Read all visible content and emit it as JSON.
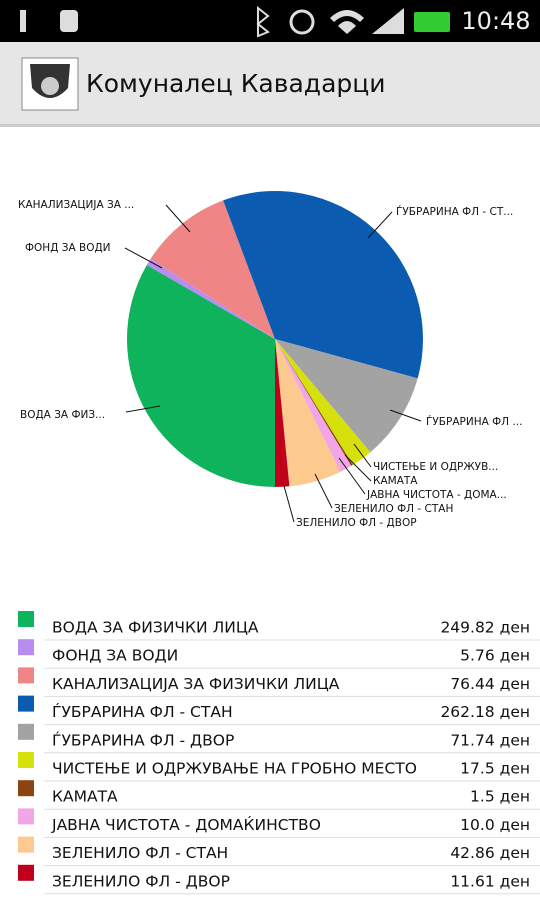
{
  "status_bar": {
    "time": "10:48"
  },
  "app_bar": {
    "title": "Комуналец Кавадарци"
  },
  "chart_data": {
    "type": "pie",
    "categories": [
      "ВОДА  ЗА ФИЗИЧКИ ЛИЦА",
      "ФОНД ЗА ВОДИ",
      "КАНАЛИЗАЦИЈА ЗА ФИЗИЧКИ ЛИЦА",
      "ЃУБРАРИНА ФЛ - СТАН",
      "ЃУБРАРИНА ФЛ - ДВОР",
      "ЧИСТЕЊЕ И ОДРЖУВАЊЕ НА ГРОБНО МЕСТО",
      "КАМАТА",
      "ЈАВНА ЧИСТОТА - ДОМАЌИНСТВО",
      "ЗЕЛЕНИЛО ФЛ - СТАН",
      "ЗЕЛЕНИЛО ФЛ - ДВОР"
    ],
    "slice_labels": [
      "ВОДА  ЗА ФИЗ...",
      "ФОНД ЗА ВОДИ",
      "КАНАЛИЗАЦИЈА ЗА ...",
      "ЃУБРАРИНА ФЛ - СТ...",
      "ЃУБРАРИНА ФЛ ...",
      "ЧИСТЕЊЕ И ОДРЖУВ...",
      "КАМАТА",
      "ЈАВНА ЧИСТОТА - ДОМА...",
      "ЗЕЛЕНИЛО ФЛ - СТАН",
      "ЗЕЛЕНИЛО ФЛ - ДВОР"
    ],
    "values": [
      249.82,
      5.76,
      76.44,
      262.18,
      71.74,
      17.5,
      1.5,
      10.0,
      42.86,
      11.61
    ],
    "value_labels": [
      "249.82 ден",
      "5.76 ден",
      "76.44 ден",
      "262.18 ден",
      "71.74 ден",
      "17.5 ден",
      "1.5 ден",
      "10.0 ден",
      "42.86 ден",
      "11.61 ден"
    ],
    "colors": [
      "#0fb35c",
      "#b98cf0",
      "#f08585",
      "#0b5cb0",
      "#a3a3a3",
      "#d5e00c",
      "#8b4513",
      "#f2a6e6",
      "#fcc98f",
      "#c0001a"
    ]
  }
}
